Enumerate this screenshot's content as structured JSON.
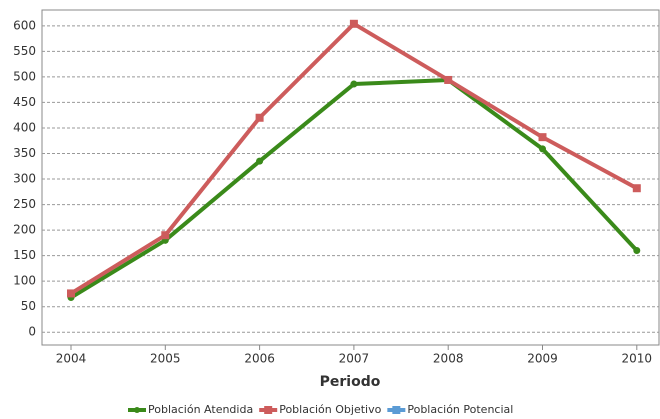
{
  "chart_data": {
    "type": "line",
    "x_label": "Periodo",
    "categories": [
      "2004",
      "2005",
      "2006",
      "2007",
      "2008",
      "2009",
      "2010"
    ],
    "series": [
      {
        "name": "Población Atendida",
        "color": "#3a8a1a",
        "values": [
          68,
          180,
          335,
          486,
          494,
          359,
          160
        ]
      },
      {
        "name": "Población Objetivo",
        "color": "#cd5c5c",
        "values": [
          76,
          190,
          420,
          604,
          494,
          382,
          282
        ]
      },
      {
        "name": "Población Potencial",
        "color": "#5b9bd5",
        "values": [
          null,
          null,
          null,
          null,
          null,
          null,
          null
        ]
      }
    ],
    "ylim": [
      -25,
      631
    ],
    "yticks": [
      0,
      50,
      100,
      150,
      200,
      250,
      300,
      350,
      400,
      450,
      500,
      550,
      600
    ],
    "grid": true
  }
}
